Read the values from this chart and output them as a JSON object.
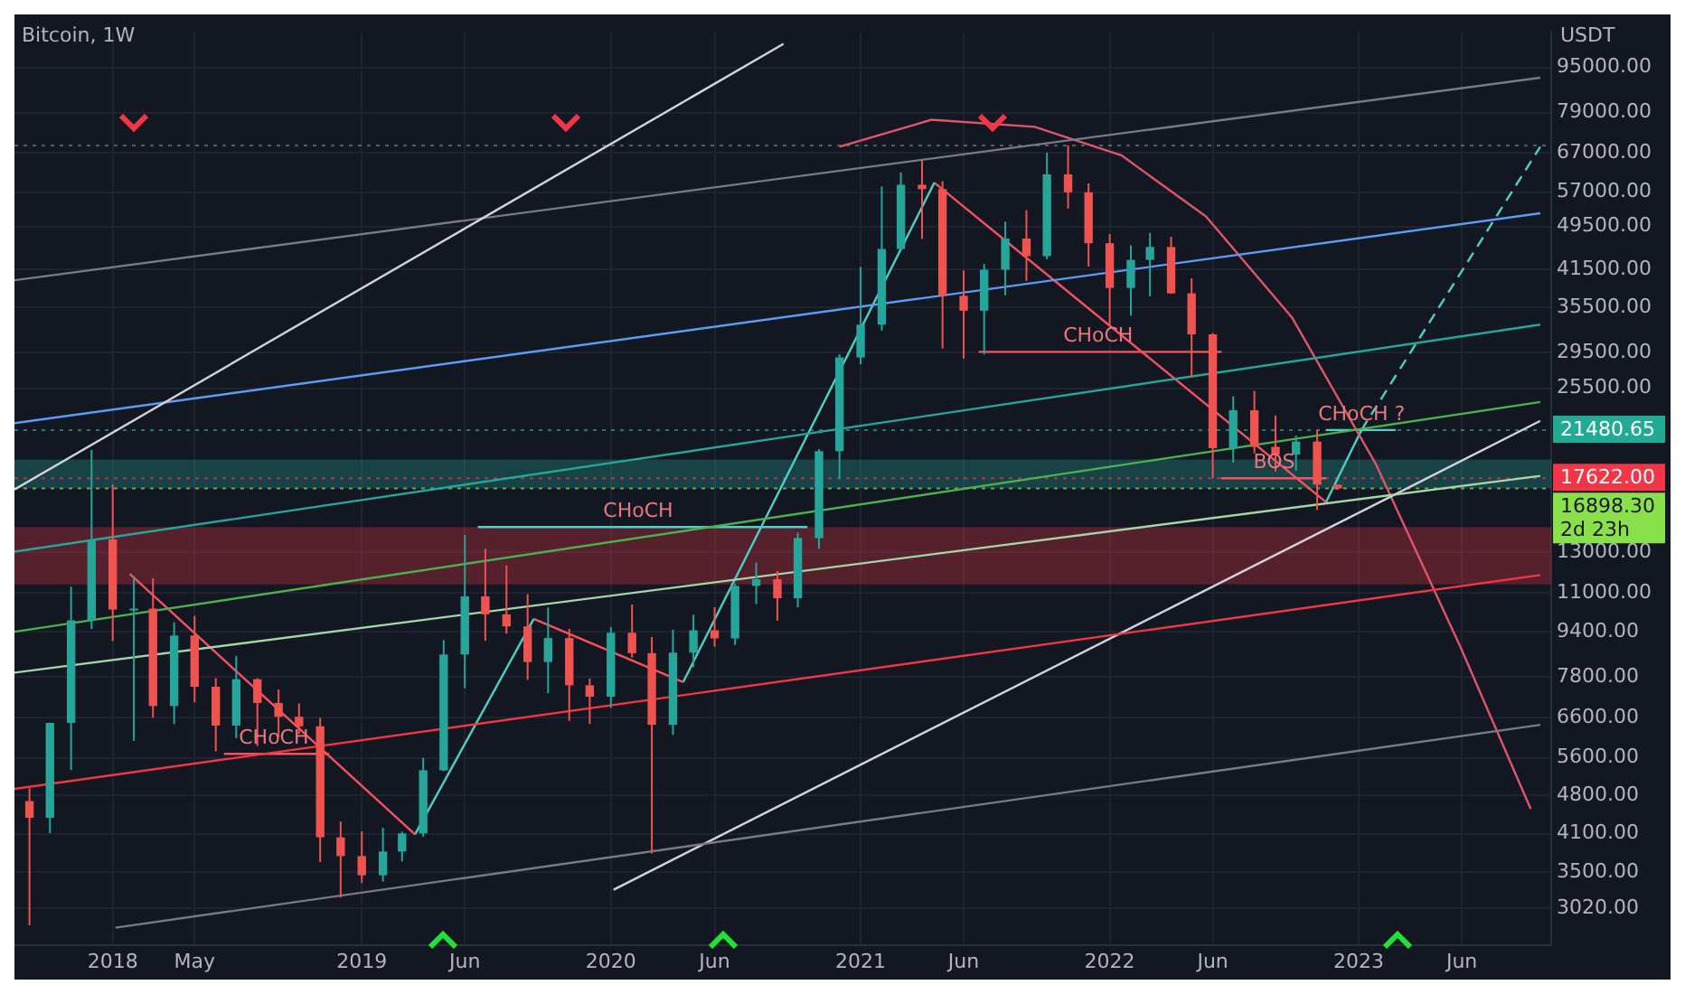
{
  "chart_data": {
    "type": "candlestick",
    "title": "Bitcoin, 1W",
    "ylabel": "USDT",
    "log": true,
    "grid": true,
    "x": [
      "2017-09",
      "2017-10",
      "2017-11",
      "2017-12",
      "2018-01",
      "2018-02",
      "2018-03",
      "2018-04",
      "2018-05",
      "2018-06",
      "2018-07",
      "2018-08",
      "2018-09",
      "2018-10",
      "2018-11",
      "2018-12",
      "2019-01",
      "2019-02",
      "2019-03",
      "2019-04",
      "2019-05",
      "2019-06",
      "2019-07",
      "2019-08",
      "2019-09",
      "2019-10",
      "2019-11",
      "2019-12",
      "2020-01",
      "2020-02",
      "2020-03",
      "2020-04",
      "2020-05",
      "2020-06",
      "2020-07",
      "2020-08",
      "2020-09",
      "2020-10",
      "2020-11",
      "2020-12",
      "2021-01",
      "2021-02",
      "2021-03",
      "2021-04",
      "2021-05",
      "2021-06",
      "2021-07",
      "2021-08",
      "2021-09",
      "2021-10",
      "2021-11",
      "2021-12",
      "2022-01",
      "2022-02",
      "2022-03",
      "2022-04",
      "2022-05",
      "2022-06",
      "2022-07",
      "2022-08",
      "2022-09",
      "2022-10",
      "2022-11",
      "2022-12"
    ],
    "ohlc": [
      [
        4689,
        4939,
        2817,
        4378
      ],
      [
        4378,
        6470,
        4110,
        6463
      ],
      [
        6463,
        11300,
        5325,
        9838
      ],
      [
        9837,
        19798,
        9500,
        13716
      ],
      [
        13716,
        17176,
        9035,
        10285
      ],
      [
        10285,
        11786,
        6000,
        10326
      ],
      [
        10326,
        11700,
        6600,
        6923
      ],
      [
        6923,
        9759,
        6430,
        9246
      ],
      [
        9246,
        10020,
        7032,
        7494
      ],
      [
        7494,
        7764,
        5750,
        6391
      ],
      [
        6391,
        8507,
        6070,
        7730
      ],
      [
        7730,
        7760,
        5880,
        7011
      ],
      [
        7011,
        7410,
        6100,
        6626
      ],
      [
        6626,
        7000,
        6180,
        6371
      ],
      [
        6371,
        6600,
        3652,
        4041
      ],
      [
        4041,
        4312,
        3156,
        3742
      ],
      [
        3742,
        4143,
        3350,
        3458
      ],
      [
        3458,
        4200,
        3370,
        3813
      ],
      [
        3813,
        4137,
        3659,
        4106
      ],
      [
        4106,
        5600,
        4052,
        5320
      ],
      [
        5320,
        9074,
        5300,
        8555
      ],
      [
        8555,
        13970,
        7450,
        10855
      ],
      [
        10855,
        13200,
        9050,
        10085
      ],
      [
        10085,
        12325,
        9320,
        9600
      ],
      [
        9600,
        10950,
        7710,
        8294
      ],
      [
        8294,
        10370,
        7300,
        9150
      ],
      [
        9150,
        9505,
        6515,
        7540
      ],
      [
        7540,
        7750,
        6435,
        7195
      ],
      [
        7195,
        9578,
        6870,
        9350
      ],
      [
        9350,
        10500,
        8450,
        8600
      ],
      [
        8600,
        9190,
        3782,
        6410
      ],
      [
        6410,
        9468,
        6150,
        8620
      ],
      [
        8620,
        10067,
        8117,
        9450
      ],
      [
        9450,
        10380,
        8833,
        9137
      ],
      [
        9137,
        11444,
        8893,
        11335
      ],
      [
        11335,
        12468,
        10518,
        11650
      ],
      [
        11650,
        12050,
        9825,
        10776
      ],
      [
        10776,
        14100,
        10375,
        13791
      ],
      [
        13791,
        19863,
        13195,
        19700
      ],
      [
        19700,
        29300,
        17572,
        28923
      ],
      [
        28923,
        41950,
        28130,
        33092
      ],
      [
        33092,
        58352,
        32296,
        45135
      ],
      [
        45135,
        61781,
        44950,
        58740
      ],
      [
        58740,
        64854,
        47044,
        57694
      ],
      [
        57694,
        59592,
        30000,
        37253
      ],
      [
        37253,
        41330,
        28805,
        35045
      ],
      [
        35045,
        42448,
        29278,
        41462
      ],
      [
        41462,
        50500,
        37332,
        47100
      ],
      [
        47100,
        52920,
        39600,
        43824
      ],
      [
        43824,
        67000,
        43283,
        61300
      ],
      [
        61300,
        69000,
        53256,
        56950
      ],
      [
        56950,
        59053,
        42000,
        46216
      ],
      [
        46216,
        47990,
        32917,
        38466
      ],
      [
        38466,
        45821,
        34322,
        43160
      ],
      [
        43160,
        48189,
        37155,
        45510
      ],
      [
        45510,
        47444,
        37578,
        37630
      ],
      [
        37630,
        40023,
        26700,
        31801
      ],
      [
        31801,
        31982,
        17622,
        19942
      ],
      [
        19942,
        24668,
        18781,
        23293
      ],
      [
        23293,
        25211,
        19520,
        20050
      ],
      [
        20050,
        22799,
        18125,
        19423
      ],
      [
        19423,
        20988,
        18190,
        20490
      ],
      [
        20490,
        21480,
        15476,
        17164
      ],
      [
        17164,
        17200,
        16800,
        16898.3
      ]
    ],
    "colors": [
      "#ef5350",
      "#26a69a",
      "#26a69a",
      "#26a69a",
      "#ef5350",
      "#26a69a",
      "#ef5350",
      "#26a69a",
      "#ef5350",
      "#ef5350",
      "#26a69a",
      "#ef5350",
      "#ef5350",
      "#ef5350",
      "#ef5350",
      "#ef5350",
      "#ef5350",
      "#26a69a",
      "#26a69a",
      "#26a69a",
      "#26a69a",
      "#26a69a",
      "#ef5350",
      "#ef5350",
      "#ef5350",
      "#26a69a",
      "#ef5350",
      "#ef5350",
      "#26a69a",
      "#ef5350",
      "#ef5350",
      "#26a69a",
      "#26a69a",
      "#ef5350",
      "#26a69a",
      "#26a69a",
      "#ef5350",
      "#26a69a",
      "#26a69a",
      "#26a69a",
      "#26a69a",
      "#26a69a",
      "#26a69a",
      "#ef5350",
      "#ef5350",
      "#ef5350",
      "#26a69a",
      "#26a69a",
      "#ef5350",
      "#26a69a",
      "#ef5350",
      "#ef5350",
      "#ef5350",
      "#26a69a",
      "#26a69a",
      "#ef5350",
      "#ef5350",
      "#ef5350",
      "#26a69a",
      "#ef5350",
      "#ef5350",
      "#26a69a",
      "#ef5350",
      "#ef5350"
    ],
    "series": [
      {
        "type": "line",
        "color": "#d1d4dc",
        "x": [
          "2017-08-10",
          "2020-09-10"
        ],
        "values": [
          16830,
          104700
        ]
      },
      {
        "type": "line",
        "color": "#787b86",
        "x": [
          "2017-08-10",
          "2023-09-24"
        ],
        "values": [
          39700,
          91100
        ]
      },
      {
        "type": "line",
        "color": "#5b9cf6",
        "x": [
          "2017-08-10",
          "2023-09-24"
        ],
        "values": [
          22100,
          52270
        ]
      },
      {
        "type": "line",
        "color": "#26a69a",
        "x": [
          "2017-08-10",
          "2023-09-24"
        ],
        "values": [
          13040,
          33100
        ]
      },
      {
        "type": "line",
        "color": "#4caf50",
        "x": [
          "2017-08-10",
          "2023-09-24"
        ],
        "values": [
          9390,
          24100
        ]
      },
      {
        "type": "line",
        "color": "#a5d6a7",
        "x": [
          "2017-08-10",
          "2023-09-24"
        ],
        "values": [
          7940,
          17800
        ]
      },
      {
        "type": "line",
        "color": "#f23645",
        "x": [
          "2017-08-10",
          "2023-09-24"
        ],
        "values": [
          4930,
          11850
        ]
      },
      {
        "type": "line",
        "color": "#787b86",
        "x": [
          "2018-01-05",
          "2023-09-24"
        ],
        "values": [
          2790,
          6410
        ]
      },
      {
        "type": "line",
        "color": "#d1d4dc",
        "x": [
          "2020-01-05",
          "2023-09-24"
        ],
        "values": [
          3260,
          22300
        ]
      },
      {
        "type": "line",
        "color": "#e0556a",
        "x": [
          "2020-12-01",
          "2021-04-15",
          "2021-09-13",
          "2022-01-18",
          "2022-05-22",
          "2022-09-25",
          "2023-01-26",
          "2023-05-30",
          "2023-09-10"
        ],
        "values": [
          68650,
          76700,
          74500,
          66300,
          51600,
          34100,
          18680,
          8820,
          4540
        ]
      },
      {
        "type": "line",
        "color": "#f7525f",
        "x": [
          "2018-01-26",
          "2019-03-20"
        ],
        "values": [
          11900,
          4090
        ]
      },
      {
        "type": "line",
        "color": "#4dd0c5",
        "x": [
          "2019-03-20",
          "2019-09-10"
        ],
        "values": [
          4090,
          9900
        ]
      },
      {
        "type": "line",
        "color": "#f7525f",
        "x": [
          "2019-09-10",
          "2020-04-16"
        ],
        "values": [
          9900,
          7640
        ]
      },
      {
        "type": "line",
        "color": "#4dd0c5",
        "x": [
          "2020-04-16",
          "2021-04-19"
        ],
        "values": [
          7640,
          59250
        ]
      },
      {
        "type": "line",
        "color": "#f7525f",
        "x": [
          "2021-04-19",
          "2022-11-14"
        ],
        "values": [
          59250,
          15980
        ]
      },
      {
        "type": "line",
        "color": "#4dd0c5",
        "x": [
          "2022-11-14",
          "2023-01-05"
        ],
        "values": [
          15980,
          21480
        ]
      },
      {
        "type": "line",
        "color": "#4dd0c5",
        "line_style": "dashed",
        "x": [
          "2023-01-05",
          "2023-09-24"
        ],
        "values": [
          21480,
          68650
        ]
      },
      {
        "type": "line",
        "color": "#f7525f",
        "x": [
          "2018-06-13",
          "2018-11-14"
        ],
        "values": [
          5690,
          5690
        ]
      },
      {
        "type": "line",
        "color": "#4dd0c5",
        "x": [
          "2019-06-20",
          "2020-10-15"
        ],
        "values": [
          14430,
          14430
        ]
      },
      {
        "type": "line",
        "color": "#f7525f",
        "x": [
          "2021-06-23",
          "2022-06-14"
        ],
        "values": [
          29600,
          29600
        ]
      },
      {
        "type": "line",
        "color": "#f7525f",
        "x": [
          "2022-06-13",
          "2022-11-14"
        ],
        "values": [
          17622,
          17622
        ]
      },
      {
        "type": "line",
        "color": "#4dd0c5",
        "x": [
          "2022-11-14",
          "2023-02-24"
        ],
        "values": [
          21480,
          21480
        ]
      }
    ],
    "bands": [
      {
        "axis": "y",
        "from": 16900,
        "to": 19030,
        "color": "#26a69a"
      },
      {
        "axis": "y",
        "from": 11400,
        "to": 14430,
        "color": "#f23645"
      }
    ],
    "ref_lines": [
      {
        "axis": "y",
        "value": 69000,
        "color": "#787b86",
        "line_style": "dotted"
      },
      {
        "axis": "y",
        "value": 21480.65,
        "label": "21480.65",
        "color": "#22ab94",
        "line_style": "dotted"
      },
      {
        "axis": "y",
        "value": 17622,
        "label": "17622.00",
        "color": "#f23645",
        "line_style": "dotted"
      },
      {
        "axis": "y",
        "value": 16898.3,
        "label": "16898.30\n2d 23h",
        "color": "#8ae04a",
        "line_style": "dotted"
      }
    ],
    "annotations": [
      {
        "text": "CHoCH",
        "x": "2018-08-25",
        "y": 5690
      },
      {
        "text": "CHoCH",
        "x": "2020-02-10",
        "y": 14430
      },
      {
        "text": "CHoCH",
        "x": "2021-12-15",
        "y": 29600
      },
      {
        "text": "BOS",
        "x": "2022-08-30",
        "y": 17622
      },
      {
        "text": "CHoCH ?",
        "x": "2023-01-05",
        "y": 21480
      }
    ],
    "xlim": [
      "2017-08-10",
      "2023-10-10"
    ],
    "xticks": [
      {
        "value": "2018-01-01",
        "label": "2018"
      },
      {
        "value": "2018-05-01",
        "label": "May"
      },
      {
        "value": "2019-01-01",
        "label": "2019"
      },
      {
        "value": "2019-06-01",
        "label": "Jun"
      },
      {
        "value": "2020-01-01",
        "label": "2020"
      },
      {
        "value": "2020-06-01",
        "label": "Jun"
      },
      {
        "value": "2021-01-01",
        "label": "2021"
      },
      {
        "value": "2021-06-01",
        "label": "Jun"
      },
      {
        "value": "2022-01-01",
        "label": "2022"
      },
      {
        "value": "2022-06-01",
        "label": "Jun"
      },
      {
        "value": "2023-01-01",
        "label": "2023"
      },
      {
        "value": "2023-06-01",
        "label": "Jun"
      }
    ],
    "ylim": [
      2600,
      110000
    ],
    "yticks": [
      {
        "value": 3020,
        "label": "3020.00"
      },
      {
        "value": 3500,
        "label": "3500.00"
      },
      {
        "value": 4100,
        "label": "4100.00"
      },
      {
        "value": 4800,
        "label": "4800.00"
      },
      {
        "value": 5600,
        "label": "5600.00"
      },
      {
        "value": 6600,
        "label": "6600.00"
      },
      {
        "value": 7800,
        "label": "7800.00"
      },
      {
        "value": 9400,
        "label": "9400.00"
      },
      {
        "value": 11000,
        "label": "11000.00"
      },
      {
        "value": 13000,
        "label": "13000.00"
      },
      {
        "value": 25500,
        "label": "25500.00"
      },
      {
        "value": 29500,
        "label": "29500.00"
      },
      {
        "value": 35500,
        "label": "35500.00"
      },
      {
        "value": 41500,
        "label": "41500.00"
      },
      {
        "value": 49500,
        "label": "49500.00"
      },
      {
        "value": 57000,
        "label": "57000.00"
      },
      {
        "value": 67000,
        "label": "67000.00"
      },
      {
        "value": 79000,
        "label": "79000.00"
      },
      {
        "value": 95000,
        "label": "95000.00"
      }
    ]
  }
}
